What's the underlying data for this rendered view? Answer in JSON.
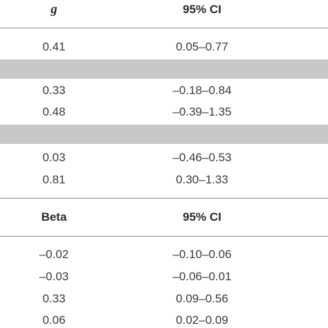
{
  "table1": {
    "headers": [
      "g",
      "95% CI"
    ],
    "rows": [
      [
        "0.41",
        "0.05–0.77"
      ],
      [
        "0.33",
        "–0.18–0.84"
      ],
      [
        "0.48",
        "–0.39–1.35"
      ],
      [
        "0.03",
        "–0.46–0.53"
      ],
      [
        "0.81",
        "0.30–1.33"
      ]
    ]
  },
  "table2": {
    "headers": [
      "Beta",
      "95% CI"
    ],
    "rows": [
      [
        "–0.02",
        "–0.10–0.06"
      ],
      [
        "–0.03",
        "–0.06–0.01"
      ],
      [
        "0.33",
        "0.09–0.56"
      ],
      [
        "0.06",
        "0.02–0.09"
      ]
    ]
  }
}
